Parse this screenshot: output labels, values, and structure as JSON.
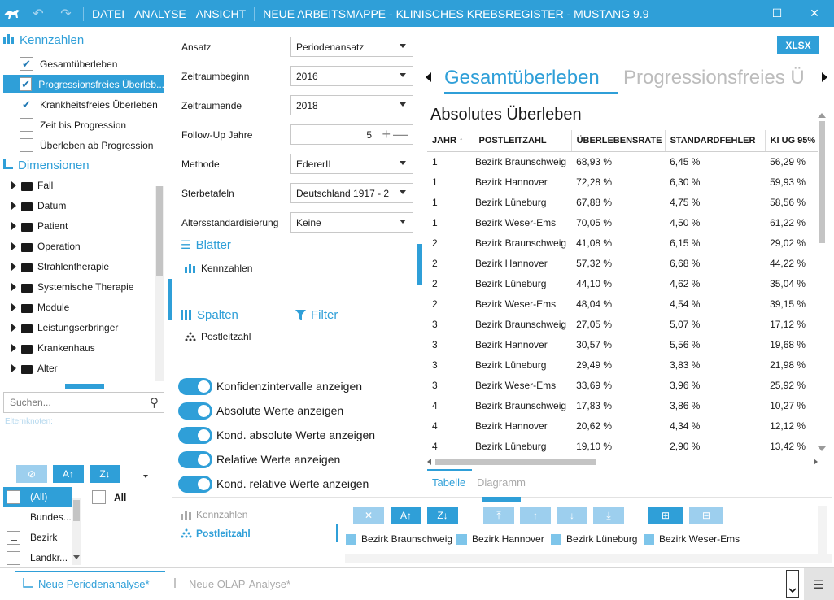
{
  "titlebar": {
    "menu": [
      "DATEI",
      "ANALYSE",
      "ANSICHT"
    ],
    "title": "NEUE ARBEITSMAPPE - KLINISCHES KREBSREGISTER - MUSTANG 9.9"
  },
  "left": {
    "kennzahlen_header": "Kennzahlen",
    "kennzahlen": [
      {
        "label": "Gesamtüberleben",
        "checked": true,
        "selected": false
      },
      {
        "label": "Progressionsfreies Überleb...",
        "checked": true,
        "selected": true
      },
      {
        "label": "Krankheitsfreies Überleben",
        "checked": true,
        "selected": false
      },
      {
        "label": "Zeit bis Progression",
        "checked": false,
        "selected": false
      },
      {
        "label": "Überleben ab Progression",
        "checked": false,
        "selected": false
      }
    ],
    "dimensionen_header": "Dimensionen",
    "dimensionen": [
      "Fall",
      "Datum",
      "Patient",
      "Operation",
      "Strahlentherapie",
      "Systemische Therapie",
      "Module",
      "Leistungserbringer",
      "Krankenhaus",
      "Alter"
    ],
    "search_placeholder": "Suchen...",
    "elternknoten": "Elternknoten:",
    "filter_values": [
      "(All)",
      "Bundes...",
      "Bezirk",
      "Landkr..."
    ],
    "all_label": "All"
  },
  "settings": {
    "fields": [
      {
        "label": "Ansatz",
        "value": "Periodenansatz",
        "type": "select"
      },
      {
        "label": "Zeitraumbeginn",
        "value": "2016",
        "type": "select"
      },
      {
        "label": "Zeitraumende",
        "value": "2018",
        "type": "select"
      },
      {
        "label": "Follow-Up Jahre",
        "value": "5",
        "type": "stepper"
      },
      {
        "label": "Methode",
        "value": "EdererII",
        "type": "select"
      },
      {
        "label": "Sterbetafeln",
        "value": "Deutschland 1917 - 2",
        "type": "select"
      },
      {
        "label": "Altersstandardisierung",
        "value": "Keine",
        "type": "select"
      }
    ],
    "blaetter_header": "Blätter",
    "blaetter_item": "Kennzahlen",
    "spalten_header": "Spalten",
    "filter_header": "Filter",
    "spalten_item": "Postleitzahl",
    "toggles": [
      "Konfidenzintervalle anzeigen",
      "Absolute Werte anzeigen",
      "Kond. absolute Werte anzeigen",
      "Relative Werte anzeigen",
      "Kond. relative Werte anzeigen"
    ]
  },
  "bottom_mid": {
    "kennzahlen": "Kennzahlen",
    "postleitzahl": "Postleitzahl",
    "legend": [
      "Bezirk Braunschweig",
      "Bezirk Hannover",
      "Bezirk Lüneburg",
      "Bezirk Weser-Ems"
    ]
  },
  "right": {
    "xlsx": "XLSX",
    "tab_active": "Gesamtüberleben",
    "tab_next": "Progressionsfreies Ü",
    "heading": "Absolutes Überleben",
    "columns": [
      "JAHR",
      "POSTLEITZAHL",
      "ÜBERLEBENSRATE",
      "STANDARDFEHLER",
      "KI UG 95%"
    ],
    "rows": [
      [
        "1",
        "Bezirk Braunschweig",
        "68,93 %",
        "6,45 %",
        "56,29 %"
      ],
      [
        "1",
        "Bezirk Hannover",
        "72,28 %",
        "6,30 %",
        "59,93 %"
      ],
      [
        "1",
        "Bezirk Lüneburg",
        "67,88 %",
        "4,75 %",
        "58,56 %"
      ],
      [
        "1",
        "Bezirk Weser-Ems",
        "70,05 %",
        "4,50 %",
        "61,22 %"
      ],
      [
        "2",
        "Bezirk Braunschweig",
        "41,08 %",
        "6,15 %",
        "29,02 %"
      ],
      [
        "2",
        "Bezirk Hannover",
        "57,32 %",
        "6,68 %",
        "44,22 %"
      ],
      [
        "2",
        "Bezirk Lüneburg",
        "44,10 %",
        "4,62 %",
        "35,04 %"
      ],
      [
        "2",
        "Bezirk Weser-Ems",
        "48,04 %",
        "4,54 %",
        "39,15 %"
      ],
      [
        "3",
        "Bezirk Braunschweig",
        "27,05 %",
        "5,07 %",
        "17,12 %"
      ],
      [
        "3",
        "Bezirk Hannover",
        "30,57 %",
        "5,56 %",
        "19,68 %"
      ],
      [
        "3",
        "Bezirk Lüneburg",
        "29,49 %",
        "3,83 %",
        "21,98 %"
      ],
      [
        "3",
        "Bezirk Weser-Ems",
        "33,69 %",
        "3,96 %",
        "25,92 %"
      ],
      [
        "4",
        "Bezirk Braunschweig",
        "17,83 %",
        "3,86 %",
        "10,27 %"
      ],
      [
        "4",
        "Bezirk Hannover",
        "20,62 %",
        "4,34 %",
        "12,12 %"
      ],
      [
        "4",
        "Bezirk Lüneburg",
        "19,10 %",
        "2,90 %",
        "13,42 %"
      ]
    ],
    "view_tabs": [
      "Tabelle",
      "Diagramm"
    ]
  },
  "footer": {
    "tab_active": "Neue Periodenanalyse*",
    "tab_inactive": "Neue OLAP-Analyse*"
  }
}
